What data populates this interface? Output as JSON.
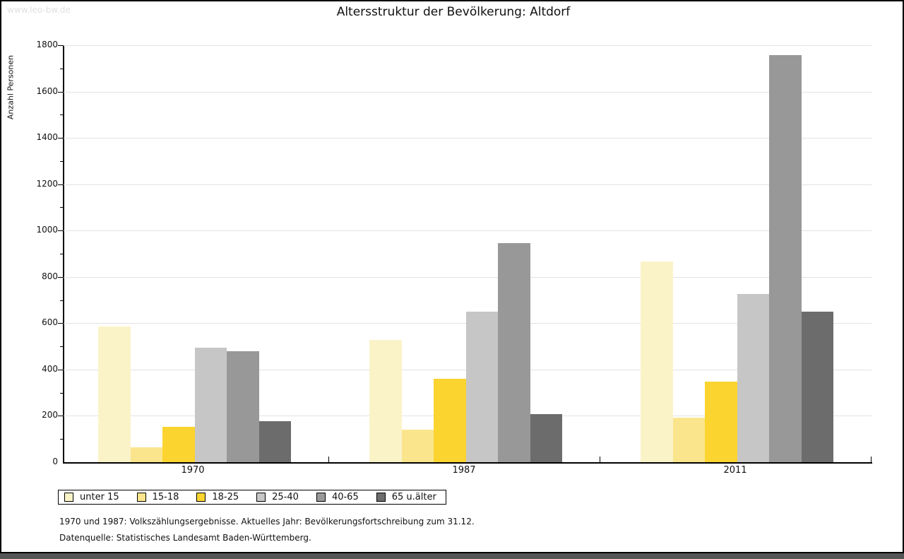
{
  "watermark": "www.leo-bw.de",
  "title": "Altersstruktur der Bevölkerung: Altdorf",
  "chart_data": {
    "type": "bar",
    "title": "Altersstruktur der Bevölkerung: Altdorf",
    "xlabel": "",
    "ylabel": "Anzahl Personen",
    "ylim": [
      0,
      1800
    ],
    "ytick_step": 200,
    "grid": true,
    "legend_position": "bottom-left",
    "categories": [
      "1970",
      "1987",
      "2011"
    ],
    "series": [
      {
        "name": "unter 15",
        "color": "#FBF3C8",
        "values": [
          585,
          527,
          865
        ]
      },
      {
        "name": "15-18",
        "color": "#FAE58C",
        "values": [
          65,
          140,
          192
        ]
      },
      {
        "name": "18-25",
        "color": "#FBD42F",
        "values": [
          153,
          360,
          347
        ]
      },
      {
        "name": "25-40",
        "color": "#C6C6C6",
        "values": [
          494,
          649,
          727
        ]
      },
      {
        "name": "40-65",
        "color": "#989898",
        "values": [
          479,
          946,
          1757
        ]
      },
      {
        "name": "65 u.älter",
        "color": "#6C6C6C",
        "values": [
          176,
          206,
          650
        ]
      }
    ]
  },
  "footnotes": {
    "line1": "1970 und 1987: Volkszählungsergebnisse. Aktuelles Jahr: Bevölkerungsfortschreibung zum 31.12.",
    "line2": "Datenquelle: Statistisches Landesamt Baden-Württemberg."
  },
  "colors": {
    "frame_border": "#000000",
    "bottom_bar": "#565656",
    "gridline": "#e2e2e2",
    "watermark": "#e0e0e0",
    "text": "#111111"
  }
}
